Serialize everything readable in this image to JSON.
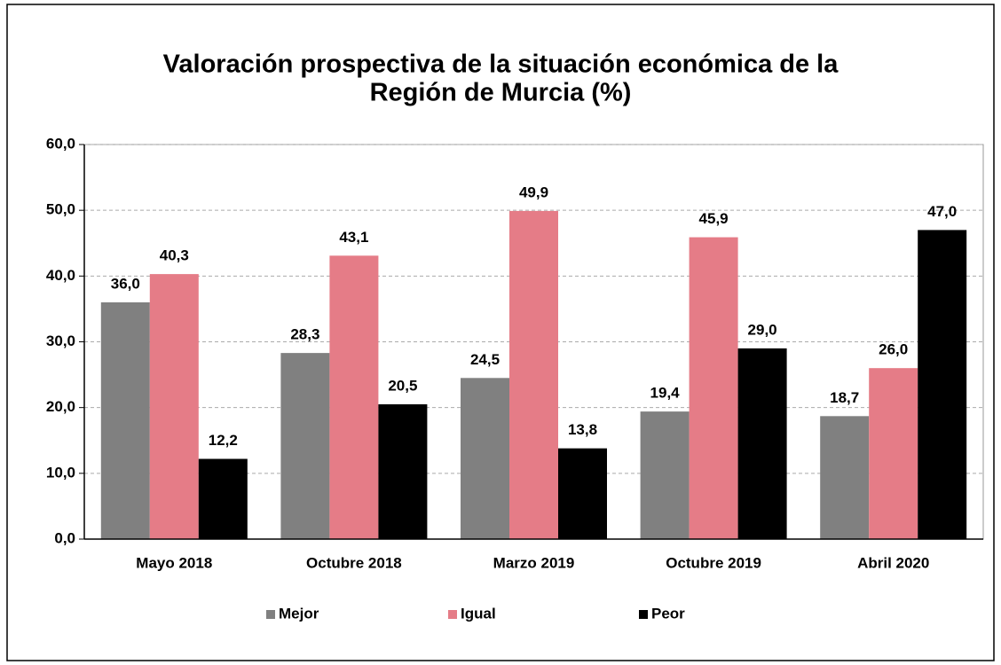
{
  "chart_data": {
    "type": "bar",
    "title": [
      "Valoración prospectiva de la situación económica de la",
      "Región de Murcia (%)"
    ],
    "categories": [
      "Mayo 2018",
      "Octubre 2018",
      "Marzo 2019",
      "Octubre 2019",
      "Abril 2020"
    ],
    "series": [
      {
        "name": "Mejor",
        "color": "#808080",
        "values": [
          36.0,
          28.3,
          24.5,
          19.4,
          18.7
        ],
        "value_labels": [
          "36,0",
          "28,3",
          "24,5",
          "19,4",
          "18,7"
        ]
      },
      {
        "name": "Igual",
        "color": "#e57c87",
        "values": [
          40.3,
          43.1,
          49.9,
          45.9,
          26.0
        ],
        "value_labels": [
          "40,3",
          "43,1",
          "49,9",
          "45,9",
          "26,0"
        ]
      },
      {
        "name": "Peor",
        "color": "#000000",
        "values": [
          12.2,
          20.5,
          13.8,
          29.0,
          47.0
        ],
        "value_labels": [
          "12,2",
          "20,5",
          "13,8",
          "29,0",
          "47,0"
        ]
      }
    ],
    "ylim": [
      0,
      60
    ],
    "yticks": [
      {
        "value": 0,
        "label": "0,0"
      },
      {
        "value": 10,
        "label": "10,0"
      },
      {
        "value": 20,
        "label": "20,0"
      },
      {
        "value": 30,
        "label": "30,0"
      },
      {
        "value": 40,
        "label": "40,0"
      },
      {
        "value": 50,
        "label": "50,0"
      },
      {
        "value": 60,
        "label": "60,0"
      }
    ],
    "grid": true,
    "legend": "bottom"
  }
}
